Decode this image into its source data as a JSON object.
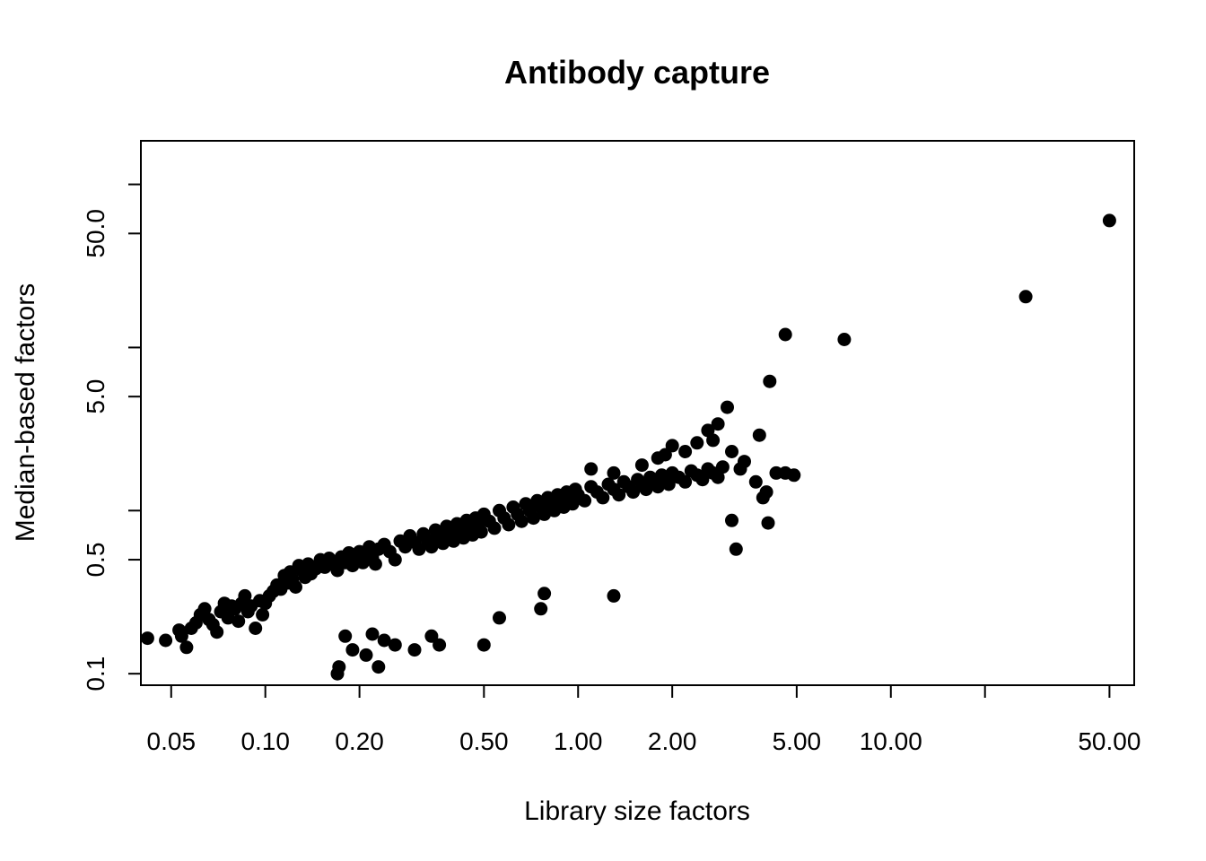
{
  "chart_data": {
    "type": "scatter",
    "title": "Antibody capture",
    "xlabel": "Library size factors",
    "ylabel": "Median-based factors",
    "x_scale": "log",
    "y_scale": "log",
    "xlim": [
      0.04,
      60
    ],
    "ylim": [
      0.085,
      185
    ],
    "x_ticks": [
      0.05,
      0.1,
      0.2,
      0.5,
      1,
      2,
      5,
      10,
      20,
      50
    ],
    "x_tick_labels": [
      "0.05",
      "0.10",
      "0.20",
      "0.50",
      "1.00",
      "2.00",
      "5.00",
      "10.00",
      "",
      "50.00"
    ],
    "y_ticks": [
      0.1,
      0.5,
      1,
      5,
      10,
      50,
      100
    ],
    "y_tick_labels": [
      "0.1",
      "0.5",
      "",
      "5.0",
      "",
      "50.0",
      ""
    ],
    "grid": false,
    "point_color": "#000000",
    "series": [
      {
        "points": [
          [
            0.042,
            0.165
          ],
          [
            0.048,
            0.16
          ],
          [
            0.053,
            0.185
          ],
          [
            0.054,
            0.17
          ],
          [
            0.056,
            0.145
          ],
          [
            0.058,
            0.19
          ],
          [
            0.06,
            0.205
          ],
          [
            0.062,
            0.23
          ],
          [
            0.064,
            0.25
          ],
          [
            0.066,
            0.215
          ],
          [
            0.068,
            0.2
          ],
          [
            0.07,
            0.18
          ],
          [
            0.072,
            0.24
          ],
          [
            0.074,
            0.27
          ],
          [
            0.076,
            0.22
          ],
          [
            0.078,
            0.26
          ],
          [
            0.08,
            0.25
          ],
          [
            0.082,
            0.21
          ],
          [
            0.084,
            0.27
          ],
          [
            0.086,
            0.3
          ],
          [
            0.088,
            0.24
          ],
          [
            0.09,
            0.26
          ],
          [
            0.093,
            0.19
          ],
          [
            0.096,
            0.28
          ],
          [
            0.098,
            0.23
          ],
          [
            0.1,
            0.27
          ],
          [
            0.103,
            0.3
          ],
          [
            0.106,
            0.32
          ],
          [
            0.109,
            0.35
          ],
          [
            0.112,
            0.33
          ],
          [
            0.115,
            0.4
          ],
          [
            0.118,
            0.36
          ],
          [
            0.12,
            0.42
          ],
          [
            0.122,
            0.38
          ],
          [
            0.125,
            0.34
          ],
          [
            0.128,
            0.46
          ],
          [
            0.131,
            0.43
          ],
          [
            0.134,
            0.39
          ],
          [
            0.137,
            0.47
          ],
          [
            0.14,
            0.41
          ],
          [
            0.145,
            0.44
          ],
          [
            0.15,
            0.5
          ],
          [
            0.155,
            0.45
          ],
          [
            0.16,
            0.51
          ],
          [
            0.165,
            0.47
          ],
          [
            0.17,
            0.43
          ],
          [
            0.175,
            0.52
          ],
          [
            0.18,
            0.48
          ],
          [
            0.185,
            0.55
          ],
          [
            0.19,
            0.46
          ],
          [
            0.195,
            0.5
          ],
          [
            0.2,
            0.56
          ],
          [
            0.205,
            0.48
          ],
          [
            0.21,
            0.54
          ],
          [
            0.215,
            0.6
          ],
          [
            0.22,
            0.52
          ],
          [
            0.225,
            0.47
          ],
          [
            0.23,
            0.58
          ],
          [
            0.24,
            0.62
          ],
          [
            0.25,
            0.56
          ],
          [
            0.26,
            0.5
          ],
          [
            0.27,
            0.65
          ],
          [
            0.28,
            0.6
          ],
          [
            0.29,
            0.7
          ],
          [
            0.3,
            0.64
          ],
          [
            0.31,
            0.58
          ],
          [
            0.32,
            0.72
          ],
          [
            0.33,
            0.66
          ],
          [
            0.34,
            0.6
          ],
          [
            0.35,
            0.76
          ],
          [
            0.36,
            0.69
          ],
          [
            0.37,
            0.63
          ],
          [
            0.38,
            0.8
          ],
          [
            0.39,
            0.72
          ],
          [
            0.4,
            0.65
          ],
          [
            0.41,
            0.83
          ],
          [
            0.42,
            0.75
          ],
          [
            0.43,
            0.68
          ],
          [
            0.44,
            0.87
          ],
          [
            0.45,
            0.79
          ],
          [
            0.46,
            0.71
          ],
          [
            0.47,
            0.9
          ],
          [
            0.48,
            0.82
          ],
          [
            0.49,
            0.74
          ],
          [
            0.5,
            0.95
          ],
          [
            0.52,
            0.86
          ],
          [
            0.54,
            0.78
          ],
          [
            0.56,
            1.0
          ],
          [
            0.58,
            0.9
          ],
          [
            0.6,
            0.82
          ],
          [
            0.62,
            1.05
          ],
          [
            0.64,
            0.95
          ],
          [
            0.66,
            0.86
          ],
          [
            0.68,
            1.1
          ],
          [
            0.7,
            1.0
          ],
          [
            0.72,
            0.9
          ],
          [
            0.74,
            1.15
          ],
          [
            0.76,
            1.05
          ],
          [
            0.78,
            0.95
          ],
          [
            0.8,
            1.2
          ],
          [
            0.82,
            1.1
          ],
          [
            0.84,
            1.0
          ],
          [
            0.86,
            1.25
          ],
          [
            0.88,
            1.15
          ],
          [
            0.9,
            1.05
          ],
          [
            0.92,
            1.3
          ],
          [
            0.94,
            1.2
          ],
          [
            0.96,
            1.1
          ],
          [
            0.98,
            1.35
          ],
          [
            1.0,
            1.25
          ],
          [
            1.05,
            1.15
          ],
          [
            1.1,
            1.4
          ],
          [
            1.15,
            1.3
          ],
          [
            1.2,
            1.2
          ],
          [
            1.25,
            1.45
          ],
          [
            1.3,
            1.35
          ],
          [
            1.35,
            1.25
          ],
          [
            1.4,
            1.5
          ],
          [
            1.45,
            1.4
          ],
          [
            1.5,
            1.3
          ],
          [
            1.55,
            1.55
          ],
          [
            1.6,
            1.45
          ],
          [
            1.65,
            1.35
          ],
          [
            1.7,
            1.6
          ],
          [
            1.75,
            1.5
          ],
          [
            1.8,
            1.4
          ],
          [
            1.85,
            1.65
          ],
          [
            1.9,
            1.55
          ],
          [
            1.95,
            1.45
          ],
          [
            2.0,
            1.7
          ],
          [
            2.1,
            1.6
          ],
          [
            2.2,
            1.5
          ],
          [
            2.3,
            1.75
          ],
          [
            2.4,
            1.65
          ],
          [
            2.5,
            1.55
          ],
          [
            2.6,
            1.8
          ],
          [
            2.7,
            1.7
          ],
          [
            2.8,
            1.6
          ],
          [
            2.9,
            1.85
          ],
          [
            0.17,
            0.1
          ],
          [
            0.172,
            0.11
          ],
          [
            0.18,
            0.17
          ],
          [
            0.19,
            0.14
          ],
          [
            0.21,
            0.13
          ],
          [
            0.22,
            0.175
          ],
          [
            0.23,
            0.11
          ],
          [
            0.24,
            0.16
          ],
          [
            0.26,
            0.15
          ],
          [
            0.3,
            0.14
          ],
          [
            0.34,
            0.17
          ],
          [
            0.36,
            0.15
          ],
          [
            0.5,
            0.15
          ],
          [
            0.56,
            0.22
          ],
          [
            0.76,
            0.25
          ],
          [
            0.78,
            0.31
          ],
          [
            1.3,
            0.3
          ],
          [
            3.2,
            0.58
          ],
          [
            4.05,
            0.84
          ],
          [
            3.1,
            0.87
          ],
          [
            4.6,
            12.0
          ],
          [
            7.1,
            11.2
          ],
          [
            4.1,
            6.2
          ],
          [
            3.0,
            4.3
          ],
          [
            2.8,
            3.4
          ],
          [
            2.6,
            3.1
          ],
          [
            3.8,
            2.9
          ],
          [
            2.4,
            2.6
          ],
          [
            2.0,
            2.5
          ],
          [
            1.9,
            2.2
          ],
          [
            3.1,
            2.3
          ],
          [
            3.4,
            2.0
          ],
          [
            2.2,
            2.3
          ],
          [
            4.6,
            1.7
          ],
          [
            4.9,
            1.65
          ],
          [
            4.3,
            1.7
          ],
          [
            3.7,
            1.5
          ],
          [
            4.0,
            1.3
          ],
          [
            3.9,
            1.2
          ],
          [
            2.7,
            2.7
          ],
          [
            3.3,
            1.8
          ],
          [
            1.8,
            2.1
          ],
          [
            1.6,
            1.9
          ],
          [
            1.3,
            1.7
          ],
          [
            1.1,
            1.8
          ]
        ]
      },
      {
        "points": [
          [
            27,
            20.5
          ],
          [
            50,
            60
          ]
        ]
      }
    ]
  }
}
